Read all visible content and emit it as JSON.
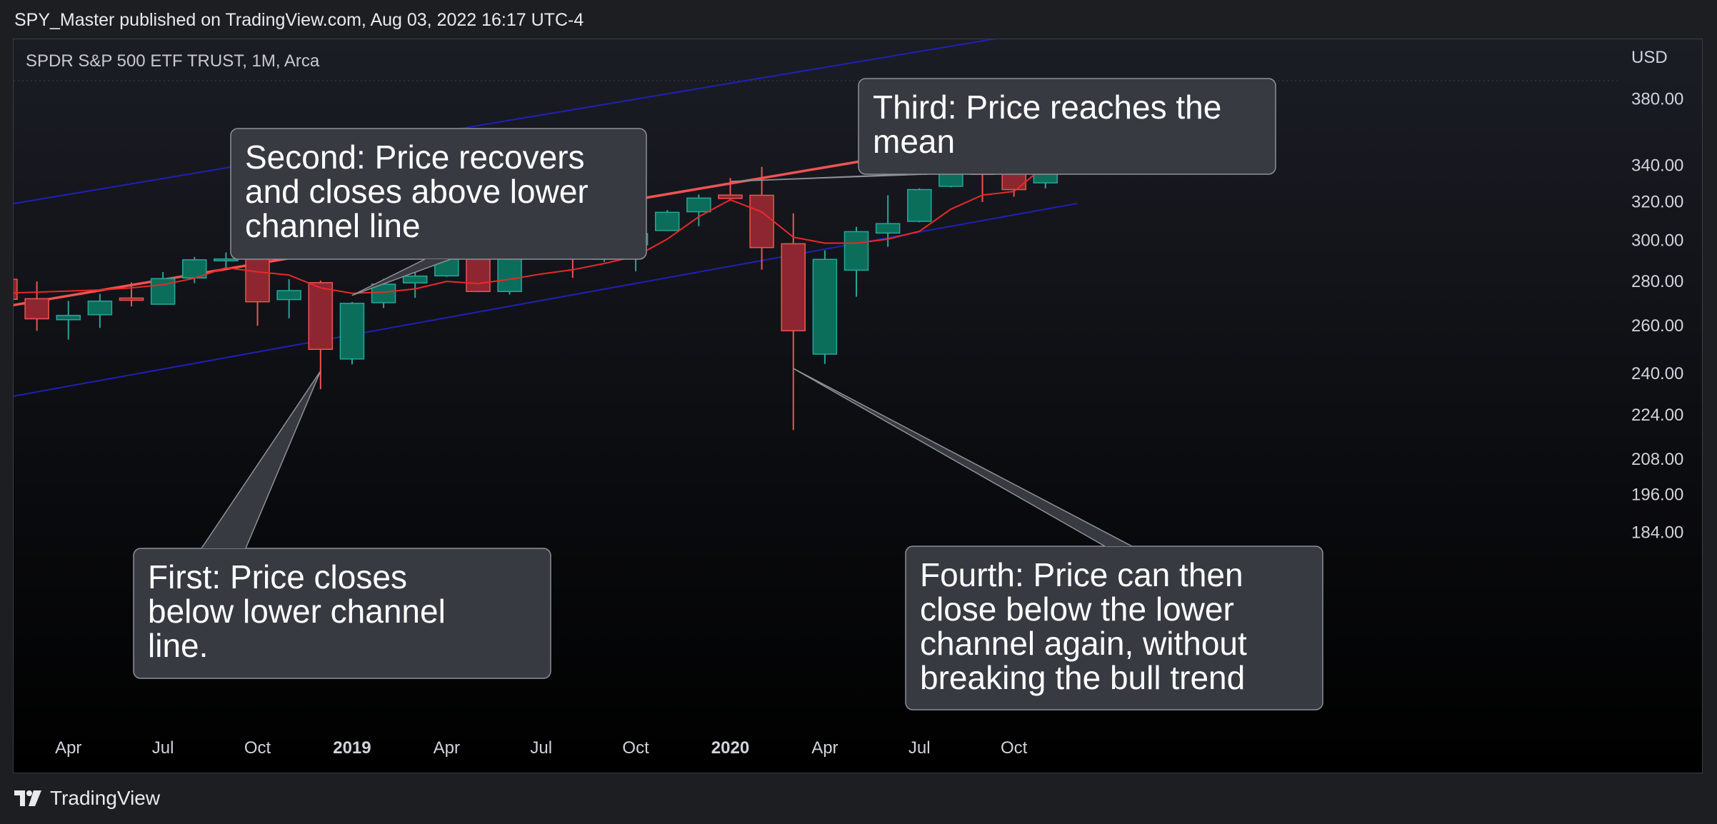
{
  "header": {
    "publish_line": "SPY_Master published on TradingView.com, Aug 03, 2022 16:17 UTC-4"
  },
  "chart_header": {
    "symbol_line": "SPDR S&P 500 ETF TRUST, 1M, Arca"
  },
  "footer": {
    "brand": "TradingView"
  },
  "colors": {
    "background_top": "#1b1d25",
    "background_bottom": "#000000",
    "up_candle": "#0a6e5b",
    "up_edge": "#26a69a",
    "down_candle": "#8e2631",
    "down_edge": "#ef5350",
    "mean_line": "#f05352",
    "channel_line": "#2020b8",
    "moving_average": "#e82929",
    "callout_fill": "#383a42",
    "callout_border": "#8e9097"
  },
  "chart_data": {
    "type": "candlestick",
    "title": "",
    "currency_label": "USD",
    "price_scale": "log",
    "ylim": [
      176,
      432
    ],
    "y_ticks": [
      184,
      196,
      208,
      224,
      240,
      260,
      280,
      300,
      320,
      340,
      380
    ],
    "y_tick_labels": [
      "184.00",
      "196.00",
      "208.00",
      "224.00",
      "240.00",
      "260.00",
      "280.00",
      "300.00",
      "320.00",
      "340.00",
      "380.00"
    ],
    "x_ticks": [
      {
        "label": "Apr",
        "date": "2018-04",
        "bold": false
      },
      {
        "label": "Jul",
        "date": "2018-07",
        "bold": false
      },
      {
        "label": "Oct",
        "date": "2018-10",
        "bold": false
      },
      {
        "label": "2019",
        "date": "2019-01",
        "bold": true
      },
      {
        "label": "Apr",
        "date": "2019-04",
        "bold": false
      },
      {
        "label": "Jul",
        "date": "2019-07",
        "bold": false
      },
      {
        "label": "Oct",
        "date": "2019-10",
        "bold": false
      },
      {
        "label": "2020",
        "date": "2020-01",
        "bold": true
      },
      {
        "label": "Apr",
        "date": "2020-04",
        "bold": false
      },
      {
        "label": "Jul",
        "date": "2020-07",
        "bold": false
      },
      {
        "label": "Oct",
        "date": "2020-10",
        "bold": false
      }
    ],
    "candles": [
      {
        "date": "2018-02",
        "open": 281.0,
        "high": 286.6,
        "low": 252.9,
        "close": 271.7
      },
      {
        "date": "2018-03",
        "open": 272.0,
        "high": 280.0,
        "low": 257.8,
        "close": 263.0
      },
      {
        "date": "2018-04",
        "open": 262.6,
        "high": 271.0,
        "low": 254.0,
        "close": 264.5
      },
      {
        "date": "2018-05",
        "open": 264.8,
        "high": 274.2,
        "low": 259.0,
        "close": 270.9
      },
      {
        "date": "2018-06",
        "open": 272.3,
        "high": 279.5,
        "low": 268.5,
        "close": 271.3
      },
      {
        "date": "2018-07",
        "open": 269.5,
        "high": 284.4,
        "low": 269.5,
        "close": 281.3
      },
      {
        "date": "2018-08",
        "open": 281.6,
        "high": 291.7,
        "low": 279.2,
        "close": 290.3
      },
      {
        "date": "2018-09",
        "open": 289.8,
        "high": 293.9,
        "low": 286.7,
        "close": 290.7
      },
      {
        "date": "2018-10",
        "open": 291.2,
        "high": 293.2,
        "low": 259.9,
        "close": 270.6
      },
      {
        "date": "2018-11",
        "open": 271.6,
        "high": 281.0,
        "low": 263.2,
        "close": 275.7
      },
      {
        "date": "2018-12",
        "open": 279.4,
        "high": 280.4,
        "low": 233.8,
        "close": 249.9
      },
      {
        "date": "2019-01",
        "open": 245.9,
        "high": 270.5,
        "low": 243.7,
        "close": 269.9
      },
      {
        "date": "2019-02",
        "open": 270.2,
        "high": 281.2,
        "low": 267.8,
        "close": 278.7
      },
      {
        "date": "2019-03",
        "open": 279.3,
        "high": 285.2,
        "low": 272.4,
        "close": 282.5
      },
      {
        "date": "2019-04",
        "open": 282.6,
        "high": 294.5,
        "low": 282.1,
        "close": 294.0
      },
      {
        "date": "2019-05",
        "open": 294.7,
        "high": 294.9,
        "low": 275.0,
        "close": 275.3
      },
      {
        "date": "2019-06",
        "open": 275.3,
        "high": 296.3,
        "low": 273.9,
        "close": 293.0
      },
      {
        "date": "2019-07",
        "open": 293.9,
        "high": 302.2,
        "low": 292.3,
        "close": 297.4
      },
      {
        "date": "2019-08",
        "open": 297.9,
        "high": 300.9,
        "low": 281.7,
        "close": 292.5
      },
      {
        "date": "2019-09",
        "open": 290.6,
        "high": 302.5,
        "low": 289.3,
        "close": 297.0
      },
      {
        "date": "2019-10",
        "open": 297.7,
        "high": 304.6,
        "low": 284.8,
        "close": 303.3
      },
      {
        "date": "2019-11",
        "open": 304.9,
        "high": 315.5,
        "low": 304.7,
        "close": 314.3
      },
      {
        "date": "2019-12",
        "open": 314.6,
        "high": 323.8,
        "low": 307.1,
        "close": 321.9
      },
      {
        "date": "2020-01",
        "open": 323.5,
        "high": 332.9,
        "low": 320.4,
        "close": 321.7
      },
      {
        "date": "2020-02",
        "open": 323.4,
        "high": 339.1,
        "low": 285.5,
        "close": 296.3
      },
      {
        "date": "2020-03",
        "open": 298.2,
        "high": 313.8,
        "low": 218.3,
        "close": 257.8
      },
      {
        "date": "2020-04",
        "open": 247.9,
        "high": 294.9,
        "low": 243.9,
        "close": 290.5
      },
      {
        "date": "2020-05",
        "open": 285.3,
        "high": 306.8,
        "low": 272.9,
        "close": 304.3
      },
      {
        "date": "2020-06",
        "open": 303.6,
        "high": 323.4,
        "low": 296.7,
        "close": 308.4
      },
      {
        "date": "2020-07",
        "open": 309.6,
        "high": 327.2,
        "low": 309.1,
        "close": 326.5
      },
      {
        "date": "2020-08",
        "open": 328.3,
        "high": 351.3,
        "low": 327.7,
        "close": 349.3
      },
      {
        "date": "2020-09",
        "open": 350.4,
        "high": 358.8,
        "low": 319.8,
        "close": 334.9
      },
      {
        "date": "2020-10",
        "open": 337.7,
        "high": 354.0,
        "low": 322.6,
        "close": 326.5
      },
      {
        "date": "2020-11",
        "open": 330.2,
        "high": 364.4,
        "low": 327.2,
        "close": 362.1
      },
      {
        "date": "2020-12",
        "open": 365.0,
        "high": 378.5,
        "low": 362.0,
        "close": 373.9
      }
    ],
    "moving_average": [
      {
        "date": "2018-02",
        "value": 274.5
      },
      {
        "date": "2018-03",
        "value": 275.0
      },
      {
        "date": "2018-04",
        "value": 275.5
      },
      {
        "date": "2018-05",
        "value": 276.0
      },
      {
        "date": "2018-06",
        "value": 277.0
      },
      {
        "date": "2018-07",
        "value": 278.5
      },
      {
        "date": "2018-08",
        "value": 281.5
      },
      {
        "date": "2018-09",
        "value": 286.5
      },
      {
        "date": "2018-10",
        "value": 284.5
      },
      {
        "date": "2018-11",
        "value": 283.0
      },
      {
        "date": "2018-12",
        "value": 277.0
      },
      {
        "date": "2019-01",
        "value": 274.5
      },
      {
        "date": "2019-02",
        "value": 275.0
      },
      {
        "date": "2019-03",
        "value": 276.5
      },
      {
        "date": "2019-04",
        "value": 280.0
      },
      {
        "date": "2019-05",
        "value": 279.0
      },
      {
        "date": "2019-06",
        "value": 281.0
      },
      {
        "date": "2019-07",
        "value": 283.5
      },
      {
        "date": "2019-08",
        "value": 285.5
      },
      {
        "date": "2019-09",
        "value": 288.5
      },
      {
        "date": "2019-10",
        "value": 292.0
      },
      {
        "date": "2019-11",
        "value": 300.5
      },
      {
        "date": "2019-12",
        "value": 312.0
      },
      {
        "date": "2020-01",
        "value": 321.0
      },
      {
        "date": "2020-02",
        "value": 314.5
      },
      {
        "date": "2020-03",
        "value": 301.5
      },
      {
        "date": "2020-04",
        "value": 298.5
      },
      {
        "date": "2020-05",
        "value": 298.5
      },
      {
        "date": "2020-06",
        "value": 300.5
      },
      {
        "date": "2020-07",
        "value": 304.5
      },
      {
        "date": "2020-08",
        "value": 316.0
      },
      {
        "date": "2020-09",
        "value": 323.5
      },
      {
        "date": "2020-10",
        "value": 325.5
      },
      {
        "date": "2020-11",
        "value": 340.0
      },
      {
        "date": "2020-12",
        "value": 352.5
      }
    ],
    "trend_lines": [
      {
        "role": "upper-channel",
        "start": {
          "date": "2018-02",
          "price": 318.2
        },
        "end": {
          "date": "2020-12",
          "price": 430.0
        }
      },
      {
        "role": "mean",
        "start": {
          "date": "2018-02",
          "price": 268.5
        },
        "end": {
          "date": "2020-12",
          "price": 364.0
        }
      },
      {
        "role": "lower-channel",
        "start": {
          "date": "2018-02",
          "price": 230.5
        },
        "end": {
          "date": "2020-12",
          "price": 319.0
        }
      }
    ],
    "callouts": [
      {
        "id": "first",
        "text": "First: Price closes below lower channel line.",
        "anchor": {
          "date": "2018-12",
          "price": 241.0
        }
      },
      {
        "id": "second",
        "text": "Second: Price recovers and closes above lower channel line",
        "anchor": {
          "date": "2019-01",
          "price": 273.5
        }
      },
      {
        "id": "third",
        "text": "Third: Price reaches the mean",
        "anchor": {
          "date": "2020-01",
          "price": 331.0
        }
      },
      {
        "id": "fourth",
        "text": "Fourth: Price can then close below the lower channel again, without breaking the bull trend",
        "anchor": {
          "date": "2020-03",
          "price": 242.0
        }
      }
    ]
  }
}
